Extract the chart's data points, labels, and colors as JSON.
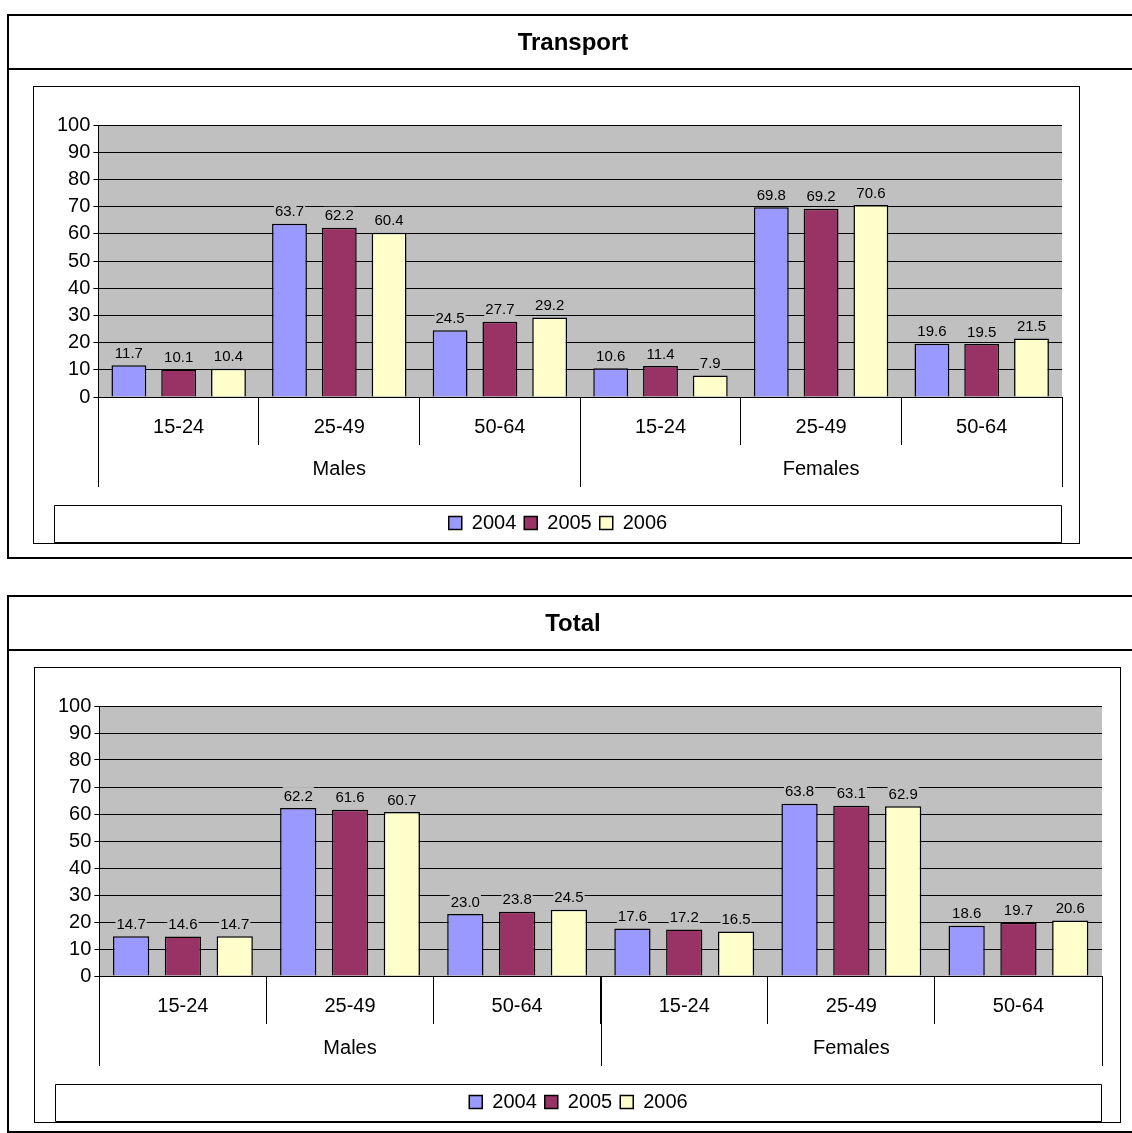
{
  "chart_data": [
    {
      "type": "bar",
      "title": "Transport",
      "categories": [
        "15-24",
        "25-49",
        "50-64",
        "15-24",
        "25-49",
        "50-64"
      ],
      "annotations": [
        "Males",
        "Females"
      ],
      "ylim": [
        0,
        100
      ],
      "yticks": [
        0,
        10,
        20,
        30,
        40,
        50,
        60,
        70,
        80,
        90,
        100
      ],
      "grid": "y",
      "legend": "bottom",
      "series": [
        {
          "name": "2004",
          "color": "#9999ff",
          "values": [
            11.7,
            63.7,
            24.5,
            10.6,
            69.8,
            19.6
          ],
          "value_labels": [
            "11.7",
            "63.7",
            "24.5",
            "10.6",
            "69.8",
            "19.6"
          ]
        },
        {
          "name": "2005",
          "color": "#993366",
          "values": [
            10.1,
            62.2,
            27.7,
            11.4,
            69.2,
            19.5
          ],
          "value_labels": [
            "10.1",
            "62.2",
            "27.7",
            "11.4",
            "69.2",
            "19.5"
          ]
        },
        {
          "name": "2006",
          "color": "#ffffcc",
          "values": [
            10.4,
            60.4,
            29.2,
            7.9,
            70.6,
            21.5
          ],
          "value_labels": [
            "10.4",
            "60.4",
            "29.2",
            "7.9",
            "70.6",
            "21.5"
          ]
        }
      ]
    },
    {
      "type": "bar",
      "title": "Total",
      "categories": [
        "15-24",
        "25-49",
        "50-64",
        "15-24",
        "25-49",
        "50-64"
      ],
      "annotations": [
        "Males",
        "Females"
      ],
      "ylim": [
        0,
        100
      ],
      "yticks": [
        0,
        10,
        20,
        30,
        40,
        50,
        60,
        70,
        80,
        90,
        100
      ],
      "grid": "y",
      "legend": "bottom",
      "series": [
        {
          "name": "2004",
          "color": "#9999ff",
          "values": [
            14.7,
            62.2,
            23.0,
            17.6,
            63.8,
            18.6
          ],
          "value_labels": [
            "14.7",
            "62.2",
            "23.0",
            "17.6",
            "63.8",
            "18.6"
          ]
        },
        {
          "name": "2005",
          "color": "#993366",
          "values": [
            14.6,
            61.6,
            23.8,
            17.2,
            63.1,
            19.7
          ],
          "value_labels": [
            "14.6",
            "61.6",
            "23.8",
            "17.2",
            "63.1",
            "19.7"
          ]
        },
        {
          "name": "2006",
          "color": "#ffffcc",
          "values": [
            14.7,
            60.7,
            24.5,
            16.5,
            62.9,
            20.6
          ],
          "value_labels": [
            "14.7",
            "60.7",
            "24.5",
            "16.5",
            "62.9",
            "20.6"
          ]
        }
      ]
    }
  ]
}
